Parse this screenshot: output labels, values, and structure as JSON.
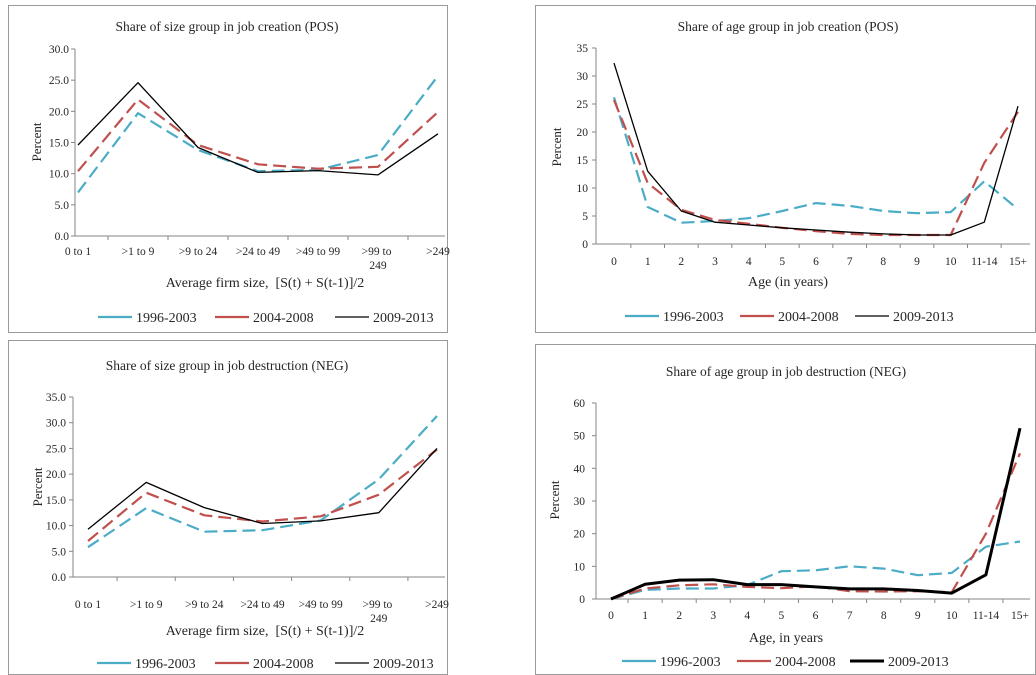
{
  "chart_data": [
    {
      "type": "line",
      "title": "Share of size group in job creation (POS)",
      "xlabel": "Average firm size,  [S(t) + S(t-1)]/2",
      "ylabel": "Percent",
      "categories": [
        "0 to 1",
        ">1 to 9",
        ">9 to 24",
        ">24 to 49",
        ">49 to 99",
        ">99 to 249",
        ">249"
      ],
      "ylim": [
        0,
        30
      ],
      "yticks": [
        "0.0",
        "5.0",
        "10.0",
        "15.0",
        "20.0",
        "25.0",
        "30.0"
      ],
      "grid": false,
      "legend": "bottom",
      "series": [
        {
          "name": "1996-2003",
          "color": "#4BACC6",
          "dashed": true,
          "values": [
            7.0,
            19.7,
            13.8,
            10.4,
            10.6,
            13.0,
            25.7
          ]
        },
        {
          "name": "2004-2008",
          "color": "#C0504D",
          "dashed": true,
          "values": [
            10.4,
            21.9,
            14.6,
            11.5,
            10.8,
            11.1,
            19.9
          ]
        },
        {
          "name": "2009-2013",
          "color": "#000000",
          "dashed": false,
          "values": [
            14.6,
            24.6,
            14.2,
            10.2,
            10.5,
            9.8,
            16.4
          ]
        }
      ]
    },
    {
      "type": "line",
      "title": "Share of age group in job creation (POS)",
      "xlabel": "Age (in years)",
      "ylabel": "Percent",
      "categories": [
        "0",
        "1",
        "2",
        "3",
        "4",
        "5",
        "6",
        "7",
        "8",
        "9",
        "10",
        "11-14",
        "15+"
      ],
      "ylim": [
        0,
        35
      ],
      "yticks": [
        "0",
        "5",
        "10",
        "15",
        "20",
        "25",
        "30",
        "35"
      ],
      "grid": false,
      "legend": "bottom",
      "series": [
        {
          "name": "1996-2003",
          "color": "#4BACC6",
          "dashed": true,
          "values": [
            26.2,
            6.6,
            3.8,
            4.1,
            4.6,
            5.9,
            7.3,
            6.8,
            5.9,
            5.5,
            5.7,
            11.2,
            6.2
          ]
        },
        {
          "name": "2004-2008",
          "color": "#C0504D",
          "dashed": true,
          "values": [
            25.7,
            10.9,
            6.1,
            4.3,
            3.6,
            2.9,
            2.3,
            1.8,
            1.6,
            1.6,
            1.6,
            14.5,
            23.6
          ]
        },
        {
          "name": "2009-2013",
          "color": "#000000",
          "dashed": false,
          "values": [
            32.3,
            13.0,
            5.9,
            3.9,
            3.4,
            2.9,
            2.5,
            2.1,
            1.8,
            1.6,
            1.6,
            3.9,
            24.6
          ]
        }
      ]
    },
    {
      "type": "line",
      "title": "Share of size group in job destruction (NEG)",
      "xlabel": "Average firm size,  [S(t) + S(t-1)]/2",
      "ylabel": "Percent",
      "categories": [
        "0 to 1",
        ">1 to 9",
        ">9 to 24",
        ">24 to 49",
        ">49 to 99",
        ">99 to 249",
        ">249"
      ],
      "ylim": [
        0,
        35
      ],
      "yticks": [
        "0.0",
        "5.0",
        "10.0",
        "15.0",
        "20.0",
        "25.0",
        "30.0",
        "35.0"
      ],
      "grid": false,
      "legend": "bottom",
      "series": [
        {
          "name": "1996-2003",
          "color": "#4BACC6",
          "dashed": true,
          "values": [
            5.8,
            13.4,
            8.8,
            9.1,
            11.0,
            19.0,
            31.3
          ]
        },
        {
          "name": "2004-2008",
          "color": "#C0504D",
          "dashed": true,
          "values": [
            7.0,
            16.4,
            12.0,
            10.8,
            11.8,
            16.0,
            24.8
          ]
        },
        {
          "name": "2009-2013",
          "color": "#000000",
          "dashed": false,
          "values": [
            9.3,
            18.4,
            13.5,
            10.4,
            10.9,
            12.5,
            25.0
          ]
        }
      ]
    },
    {
      "type": "line",
      "title": "Share of age group in job destruction (NEG)",
      "xlabel": "Age, in years",
      "ylabel": "Percent",
      "categories": [
        "0",
        "1",
        "2",
        "3",
        "4",
        "5",
        "6",
        "7",
        "8",
        "9",
        "10",
        "11-14",
        "15+"
      ],
      "ylim": [
        0,
        60
      ],
      "yticks": [
        "0",
        "10",
        "20",
        "30",
        "40",
        "50",
        "60"
      ],
      "grid": false,
      "legend": "bottom",
      "series": [
        {
          "name": "1996-2003",
          "color": "#4BACC6",
          "dashed": true,
          "values": [
            0,
            2.8,
            3.2,
            3.2,
            4.3,
            8.5,
            8.8,
            10.0,
            9.3,
            7.3,
            8.0,
            16.0,
            17.6
          ]
        },
        {
          "name": "2004-2008",
          "color": "#C0504D",
          "dashed": true,
          "values": [
            0,
            3.2,
            4.2,
            4.5,
            3.7,
            3.3,
            3.9,
            2.4,
            2.3,
            2.4,
            2.1,
            20.0,
            44.6
          ]
        },
        {
          "name": "2009-2013",
          "color": "#000000",
          "dashed": false,
          "values": [
            0,
            4.5,
            5.8,
            5.9,
            4.4,
            4.4,
            3.7,
            3.1,
            3.1,
            2.6,
            1.8,
            7.4,
            52.3
          ]
        }
      ]
    }
  ]
}
